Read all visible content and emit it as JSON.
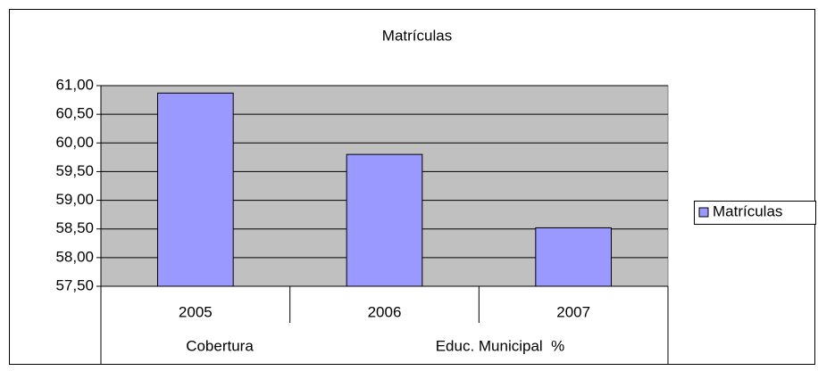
{
  "chart_data": {
    "type": "bar",
    "title": "Matrículas",
    "categories": [
      "2005",
      "2006",
      "2007"
    ],
    "x_label_parts": [
      "Cobertura",
      "Educ. Municipal  %"
    ],
    "series": [
      {
        "name": "Matrículas",
        "color": "#9999ff",
        "values": [
          60.87,
          59.8,
          58.52
        ]
      }
    ],
    "ylim": [
      57.5,
      61
    ],
    "yticks": [
      {
        "value": 57.5,
        "label": "57,50"
      },
      {
        "value": 58,
        "label": "58,00"
      },
      {
        "value": 58.5,
        "label": "58,50"
      },
      {
        "value": 59,
        "label": "59,00"
      },
      {
        "value": 59.5,
        "label": "59,50"
      },
      {
        "value": 60,
        "label": "60,00"
      },
      {
        "value": 60.5,
        "label": "60,50"
      },
      {
        "value": 61,
        "label": "61,00"
      }
    ],
    "grid": true,
    "plot_background": "#c0c0c0",
    "legend": "right"
  }
}
